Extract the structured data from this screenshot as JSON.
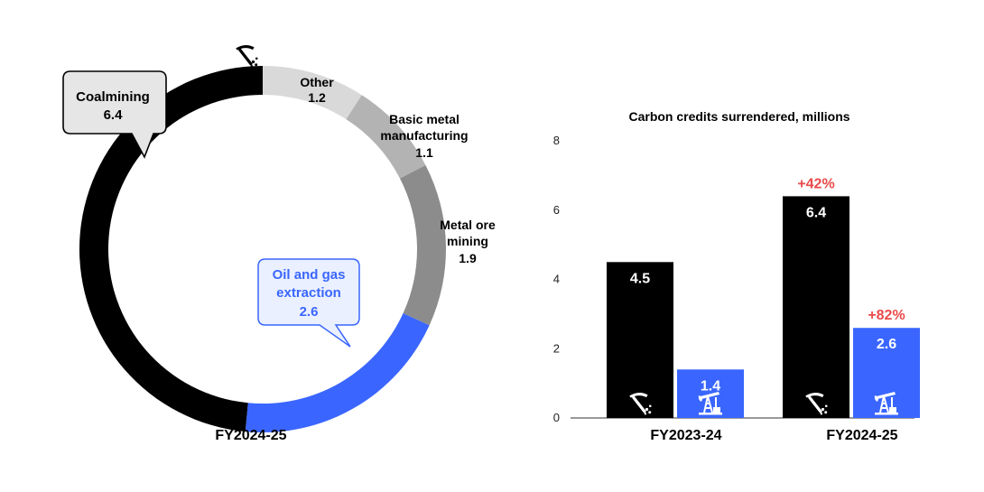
{
  "chart_data": [
    {
      "type": "pie",
      "variant": "donut",
      "xlabel": "FY2024-25",
      "slices": [
        {
          "name": "Other",
          "value": 1.2,
          "color": "#d9d9d9",
          "label": "Other",
          "value_label": "1.2"
        },
        {
          "name": "Basic metal manufacturing",
          "value": 1.1,
          "color": "#b3b3b3",
          "label_lines": [
            "Basic metal",
            "manufacturing"
          ],
          "value_label": "1.1"
        },
        {
          "name": "Metal ore mining",
          "value": 1.9,
          "color": "#8c8c8c",
          "label_lines": [
            "Metal ore",
            "mining"
          ],
          "value_label": "1.9"
        },
        {
          "name": "Oil and gas extraction",
          "value": 2.6,
          "color": "#3a66ff",
          "label_lines": [
            "Oil and gas",
            "extraction"
          ],
          "value_label": "2.6",
          "icon": "oil-pump-icon"
        },
        {
          "name": "Coalmining",
          "value": 6.4,
          "color": "#000000",
          "label": "Coalmining",
          "value_label": "6.4",
          "icon": "pickaxe-icon"
        }
      ]
    },
    {
      "type": "bar",
      "title": "Carbon credits surrendered, millions",
      "categories": [
        "FY2023-24",
        "FY2024-25"
      ],
      "ylim": [
        0,
        8
      ],
      "yticks": [
        "0",
        "2",
        "4",
        "6",
        "8"
      ],
      "series": [
        {
          "values": [
            4.5,
            6.4
          ],
          "value_labels": [
            "4.5",
            "6.4"
          ],
          "color": "#000000",
          "icon": "pickaxe-icon"
        },
        {
          "values": [
            1.4,
            2.6
          ],
          "value_labels": [
            "1.4",
            "2.6"
          ],
          "color": "#3a66ff",
          "icon": "oil-pump-icon"
        }
      ],
      "annotations": [
        {
          "series": 0,
          "category": 1,
          "text": "+42%",
          "color": "#ea4a4a"
        },
        {
          "series": 1,
          "category": 1,
          "text": "+82%",
          "color": "#ea4a4a"
        }
      ],
      "grid": false,
      "legend": "none"
    }
  ]
}
